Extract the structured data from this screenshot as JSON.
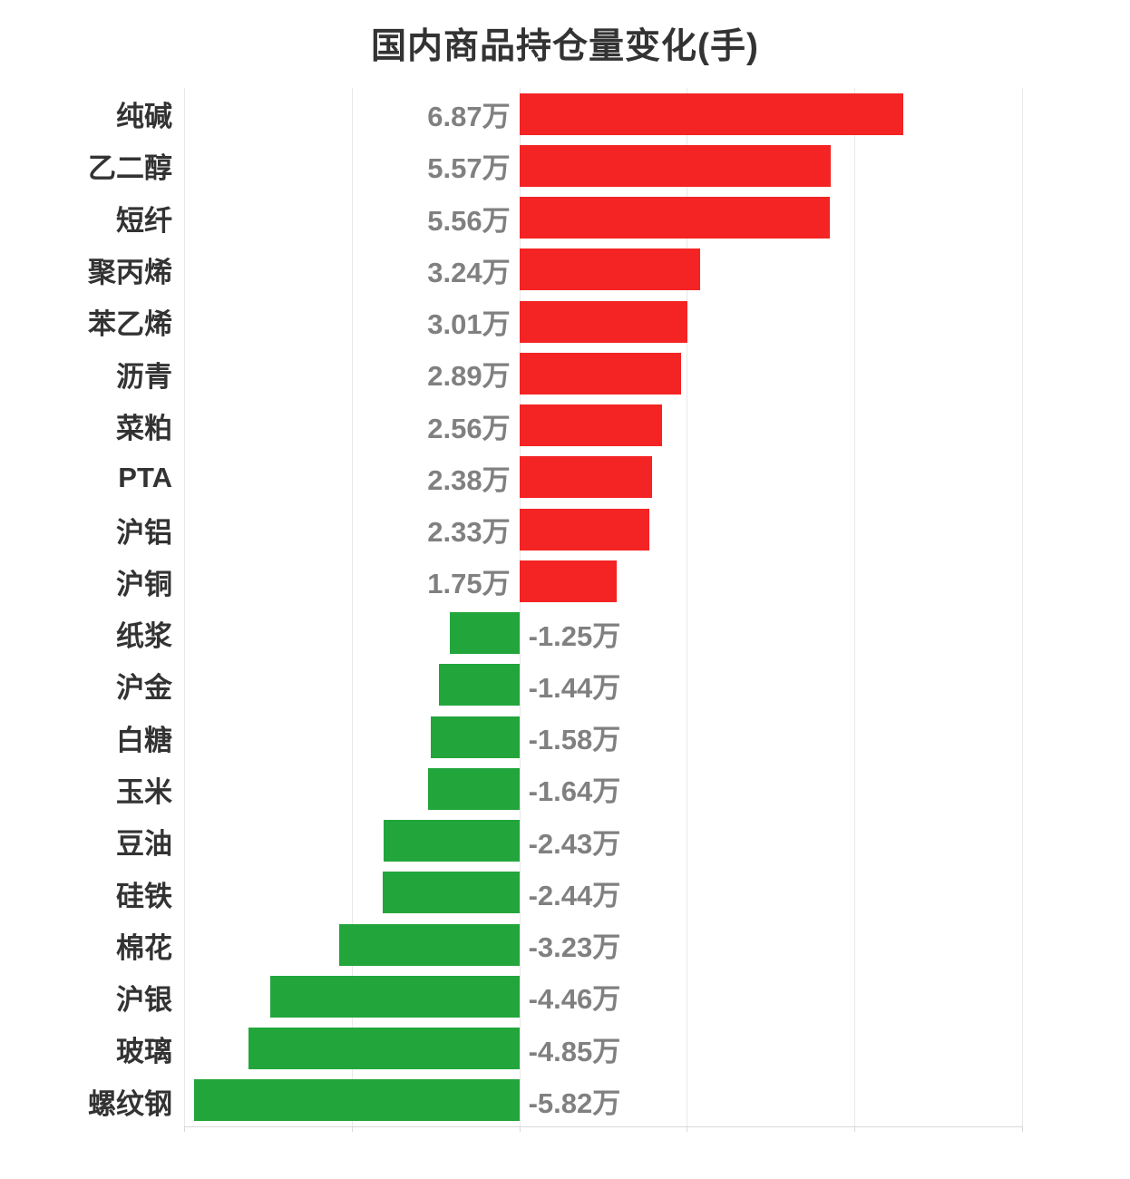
{
  "chart_data": {
    "type": "bar",
    "orientation": "horizontal",
    "title": "国内商品持仓量变化(手)",
    "categories": [
      "纯碱",
      "乙二醇",
      "短纤",
      "聚丙烯",
      "苯乙烯",
      "沥青",
      "菜粕",
      "PTA",
      "沪铝",
      "沪铜",
      "纸浆",
      "沪金",
      "白糖",
      "玉米",
      "豆油",
      "硅铁",
      "棉花",
      "沪银",
      "玻璃",
      "螺纹钢"
    ],
    "values": [
      6.87,
      5.57,
      5.56,
      3.24,
      3.01,
      2.89,
      2.56,
      2.38,
      2.33,
      1.75,
      -1.25,
      -1.44,
      -1.58,
      -1.64,
      -2.43,
      -2.44,
      -3.23,
      -4.46,
      -4.85,
      -5.82
    ],
    "value_labels": [
      "6.87万",
      "5.57万",
      "5.56万",
      "3.24万",
      "3.01万",
      "2.89万",
      "2.56万",
      "2.38万",
      "2.33万",
      "1.75万",
      "-1.25万",
      "-1.44万",
      "-1.58万",
      "-1.64万",
      "-2.43万",
      "-2.44万",
      "-3.23万",
      "-4.46万",
      "-4.85万",
      "-5.82万"
    ],
    "unit": "万手",
    "xlim": [
      -6,
      9
    ],
    "grid_step": 3,
    "grid": true,
    "legend": "none",
    "tick_labels_shown": false,
    "positive_color": "#f42424",
    "negative_color": "#22a63c",
    "category_label_color": "#333333",
    "value_label_color": "#808080",
    "gridline_color": "#e8e8e8",
    "axis_color": "#d9d9d9",
    "title_color": "#333333",
    "background_color": "#ffffff"
  }
}
